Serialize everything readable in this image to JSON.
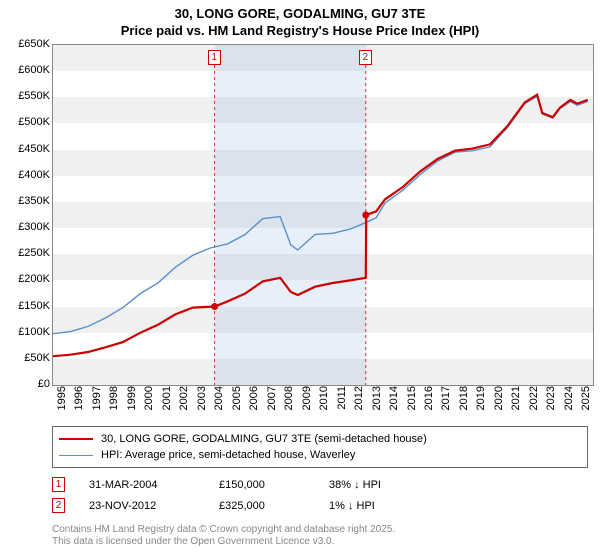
{
  "title_line1": "30, LONG GORE, GODALMING, GU7 3TE",
  "title_line2": "Price paid vs. HM Land Registry's House Price Index (HPI)",
  "chart": {
    "type": "line",
    "background_color": "#ffffff",
    "band_color": "#f0f0f0",
    "shade_color": "rgba(120,170,220,0.18)",
    "x_years": [
      "1995",
      "1996",
      "1997",
      "1998",
      "1999",
      "2000",
      "2001",
      "2002",
      "2003",
      "2004",
      "2005",
      "2006",
      "2007",
      "2008",
      "2009",
      "2010",
      "2011",
      "2012",
      "2013",
      "2014",
      "2015",
      "2016",
      "2017",
      "2018",
      "2019",
      "2020",
      "2021",
      "2022",
      "2023",
      "2024",
      "2025"
    ],
    "xlim": [
      1995,
      2025.9
    ],
    "y_ticks": [
      0,
      50,
      100,
      150,
      200,
      250,
      300,
      350,
      400,
      450,
      500,
      550,
      600,
      650
    ],
    "y_tick_labels": [
      "£0",
      "£50K",
      "£100K",
      "£150K",
      "£200K",
      "£250K",
      "£300K",
      "£350K",
      "£400K",
      "£450K",
      "£500K",
      "£550K",
      "£600K",
      "£650K"
    ],
    "ylim": [
      0,
      650
    ],
    "label_fontsize": 11,
    "shade_range": [
      2004.25,
      2012.9
    ],
    "series": {
      "red": {
        "label": "30, LONG GORE, GODALMING, GU7 3TE (semi-detached house)",
        "color": "#cc0000",
        "width": 2.2,
        "points": [
          [
            1995,
            55
          ],
          [
            1996,
            58
          ],
          [
            1997,
            63
          ],
          [
            1998,
            72
          ],
          [
            1999,
            82
          ],
          [
            2000,
            100
          ],
          [
            2001,
            115
          ],
          [
            2002,
            135
          ],
          [
            2003,
            148
          ],
          [
            2004.25,
            150
          ],
          [
            2005,
            160
          ],
          [
            2006,
            175
          ],
          [
            2007,
            198
          ],
          [
            2008,
            205
          ],
          [
            2008.6,
            178
          ],
          [
            2009,
            172
          ],
          [
            2010,
            188
          ],
          [
            2011,
            195
          ],
          [
            2012,
            200
          ],
          [
            2012.9,
            205
          ],
          [
            2012.92,
            325
          ],
          [
            2013.5,
            332
          ],
          [
            2014,
            355
          ],
          [
            2015,
            378
          ],
          [
            2016,
            408
          ],
          [
            2017,
            432
          ],
          [
            2018,
            448
          ],
          [
            2019,
            452
          ],
          [
            2020,
            460
          ],
          [
            2021,
            495
          ],
          [
            2022,
            540
          ],
          [
            2022.7,
            555
          ],
          [
            2023,
            520
          ],
          [
            2023.6,
            512
          ],
          [
            2024,
            530
          ],
          [
            2024.6,
            545
          ],
          [
            2025,
            538
          ],
          [
            2025.6,
            545
          ]
        ],
        "sale_points": [
          {
            "x": 2004.25,
            "y": 150
          },
          {
            "x": 2012.9,
            "y": 325
          }
        ]
      },
      "blue": {
        "label": "HPI: Average price, semi-detached house, Waverley",
        "color": "#5b8fc7",
        "width": 1.4,
        "points": [
          [
            1995,
            98
          ],
          [
            1996,
            102
          ],
          [
            1997,
            112
          ],
          [
            1998,
            128
          ],
          [
            1999,
            148
          ],
          [
            2000,
            175
          ],
          [
            2001,
            195
          ],
          [
            2002,
            225
          ],
          [
            2003,
            248
          ],
          [
            2004,
            262
          ],
          [
            2005,
            270
          ],
          [
            2006,
            288
          ],
          [
            2007,
            318
          ],
          [
            2008,
            322
          ],
          [
            2008.6,
            268
          ],
          [
            2009,
            258
          ],
          [
            2010,
            288
          ],
          [
            2011,
            290
          ],
          [
            2012,
            298
          ],
          [
            2013,
            312
          ],
          [
            2013.5,
            320
          ],
          [
            2014,
            348
          ],
          [
            2015,
            372
          ],
          [
            2016,
            402
          ],
          [
            2017,
            428
          ],
          [
            2018,
            445
          ],
          [
            2019,
            448
          ],
          [
            2020,
            455
          ],
          [
            2021,
            492
          ],
          [
            2022,
            538
          ],
          [
            2022.7,
            552
          ],
          [
            2023,
            518
          ],
          [
            2023.6,
            510
          ],
          [
            2024,
            528
          ],
          [
            2024.6,
            542
          ],
          [
            2025,
            535
          ],
          [
            2025.6,
            542
          ]
        ]
      }
    },
    "markers": [
      {
        "id": "1",
        "x": 2004.25
      },
      {
        "id": "2",
        "x": 2012.9
      }
    ]
  },
  "legend": {
    "red": "30, LONG GORE, GODALMING, GU7 3TE (semi-detached house)",
    "blue": "HPI: Average price, semi-detached house, Waverley"
  },
  "sale_markers": [
    {
      "id": "1",
      "date": "31-MAR-2004",
      "price": "£150,000",
      "pct": "38% ↓ HPI"
    },
    {
      "id": "2",
      "date": "23-NOV-2012",
      "price": "£325,000",
      "pct": "1% ↓ HPI"
    }
  ],
  "footer_line1": "Contains HM Land Registry data © Crown copyright and database right 2025.",
  "footer_line2": "This data is licensed under the Open Government Licence v3.0."
}
